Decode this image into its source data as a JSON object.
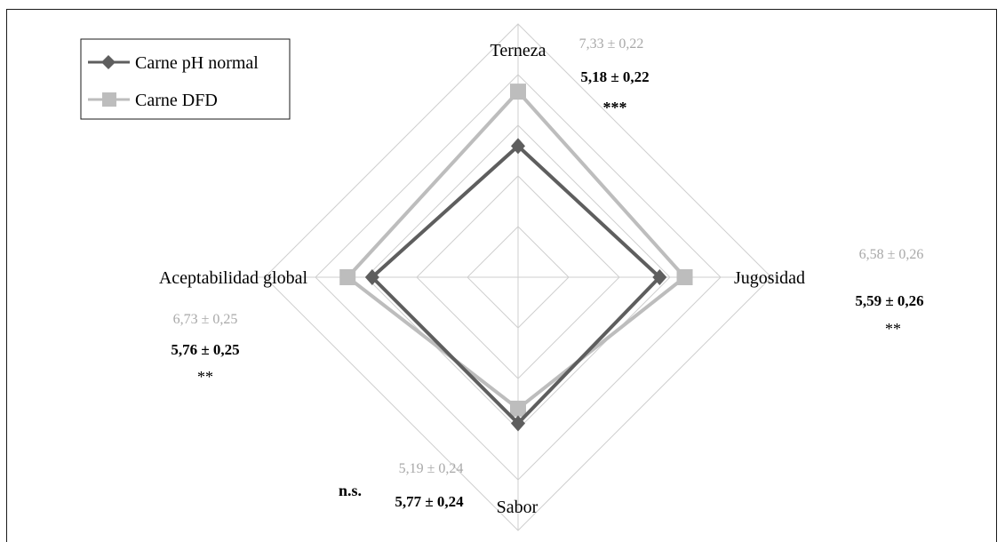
{
  "chart_data": {
    "type": "radar",
    "axes": [
      "Terneza",
      "Jugosidad",
      "Sabor",
      "Aceptabilidad global"
    ],
    "range": [
      0,
      10
    ],
    "rings": 5,
    "series": [
      {
        "name": "Carne pH normal",
        "color": "#5e5e5e",
        "marker": "diamond",
        "values": [
          5.18,
          5.59,
          5.77,
          5.76
        ]
      },
      {
        "name": "Carne DFD",
        "color": "#bdbdbd",
        "marker": "square",
        "values": [
          7.33,
          6.58,
          5.19,
          6.73
        ]
      }
    ],
    "annotations": [
      {
        "axis": "Terneza",
        "dfd": "7,33 ± 0,22",
        "normal": "5,18 ± 0,22",
        "signif": "***"
      },
      {
        "axis": "Jugosidad",
        "dfd": "6,58 ± 0,26",
        "normal": "5,59 ± 0,26",
        "signif": "**"
      },
      {
        "axis": "Sabor",
        "dfd": "5,19 ± 0,24",
        "normal": "5,77 ± 0,24",
        "signif": "n.s."
      },
      {
        "axis": "Aceptabilidad global",
        "dfd": "6,73 ± 0,25",
        "normal": "5,76 ± 0,25",
        "signif": "**"
      }
    ],
    "legend_position": "top-left"
  }
}
